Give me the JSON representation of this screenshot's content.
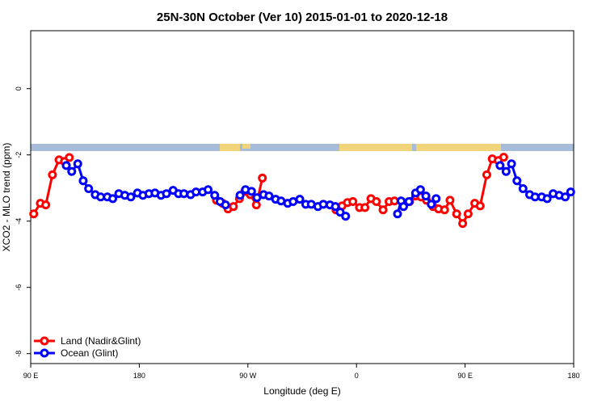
{
  "chart_data": {
    "type": "line",
    "title": "25N-30N October (Ver 10)   2015-01-01 to 2020-12-18",
    "x_label": "Longitude (deg E)",
    "y_label": "XCO2 - MLO trend (ppm)",
    "xlim": [
      90,
      540
    ],
    "ylim": [
      -8.3,
      1.75
    ],
    "xticks": [
      {
        "value": 90,
        "label": "90 E"
      },
      {
        "value": 180,
        "label": "180"
      },
      {
        "value": 270,
        "label": "90 W"
      },
      {
        "value": 360,
        "label": "0"
      },
      {
        "value": 450,
        "label": "90 E"
      },
      {
        "value": 540,
        "label": "180"
      }
    ],
    "yticks": [
      0,
      -2,
      -4,
      -6,
      -8
    ],
    "legend": "bottom-left",
    "series": [
      {
        "name": "Land (Nadir&Glint)",
        "color": "#ff0000",
        "x": [
          92.5,
          98,
          102.5,
          108,
          113.5,
          118,
          122,
          null,
          244,
          249,
          253.5,
          258,
          263,
          267.5,
          272,
          277,
          282,
          null,
          343,
          348,
          352.5,
          357,
          362.5,
          367,
          372,
          376.5,
          382,
          387,
          391.5,
          399.5,
          404,
          409,
          413.5,
          418,
          423.5,
          428,
          433,
          437.5,
          443,
          448,
          452.5,
          458,
          462.5,
          468,
          472.5,
          477.5,
          482
        ],
        "values": [
          -3.78,
          -3.46,
          -3.51,
          -2.6,
          -2.15,
          -2.2,
          -2.08,
          null,
          -3.37,
          -3.46,
          -3.63,
          -3.56,
          -3.32,
          -3.1,
          -3.2,
          -3.51,
          -2.7,
          null,
          -3.66,
          -3.54,
          -3.44,
          -3.41,
          -3.59,
          -3.59,
          -3.32,
          -3.41,
          -3.66,
          -3.41,
          -3.39,
          -3.46,
          -3.41,
          -3.24,
          -3.27,
          -3.37,
          -3.56,
          -3.63,
          -3.66,
          -3.37,
          -3.78,
          -4.07,
          -3.78,
          -3.46,
          -3.54,
          -2.6,
          -2.12,
          -2.17,
          -2.07
        ]
      },
      {
        "name": "Ocean (Glint)",
        "color": "#0000ff",
        "x": [
          119.5,
          124,
          129,
          133.5,
          138,
          143.5,
          148,
          153.5,
          158,
          163,
          168,
          173,
          178.5,
          183,
          188,
          193,
          198,
          202.5,
          208,
          212.5,
          217,
          222.5,
          227,
          232.5,
          237,
          242.5,
          247,
          251.5,
          null,
          263.5,
          268,
          273,
          277.5,
          283,
          287.5,
          293,
          297.5,
          303,
          307.5,
          313,
          318,
          322.5,
          328,
          332.5,
          338,
          342.5,
          346.5,
          351,
          null,
          394,
          397,
          399,
          403.5,
          409,
          413,
          417.5,
          422,
          426,
          null,
          479,
          484,
          488.5,
          493,
          498,
          503.5,
          508,
          513.5,
          518,
          523,
          528,
          533,
          537.5
        ],
        "values": [
          -2.32,
          -2.5,
          -2.27,
          -2.78,
          -3.02,
          -3.2,
          -3.27,
          -3.27,
          -3.32,
          -3.17,
          -3.22,
          -3.27,
          -3.15,
          -3.22,
          -3.17,
          -3.15,
          -3.22,
          -3.17,
          -3.07,
          -3.17,
          -3.17,
          -3.2,
          -3.12,
          -3.12,
          -3.05,
          -3.22,
          -3.41,
          -3.51,
          null,
          -3.22,
          -3.05,
          -3.1,
          -3.29,
          -3.2,
          -3.24,
          -3.34,
          -3.39,
          -3.46,
          -3.41,
          -3.34,
          -3.49,
          -3.49,
          -3.56,
          -3.49,
          -3.51,
          -3.56,
          -3.73,
          -3.85,
          null,
          -3.78,
          -3.39,
          -3.56,
          -3.41,
          -3.15,
          -3.05,
          -3.24,
          -3.49,
          -3.32,
          null,
          -2.32,
          -2.5,
          -2.27,
          -2.78,
          -3.02,
          -3.2,
          -3.27,
          -3.27,
          -3.32,
          -3.17,
          -3.22,
          -3.27,
          -3.12
        ]
      }
    ]
  }
}
